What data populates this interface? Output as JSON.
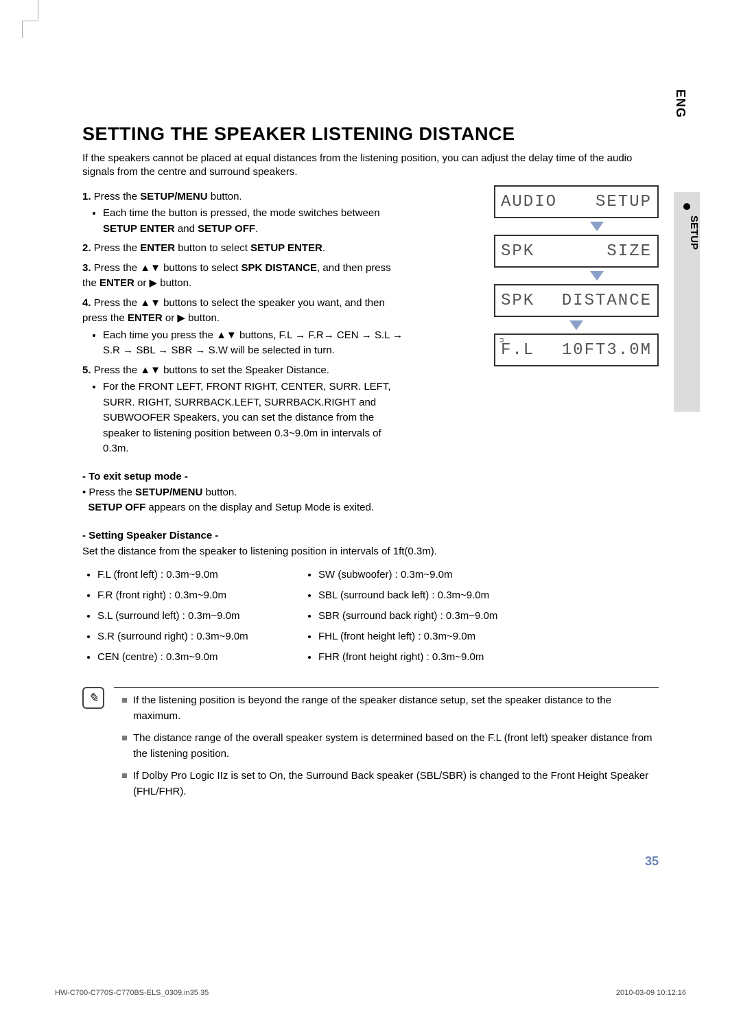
{
  "page": {
    "lang_tab": "ENG",
    "section_tab": "SETUP",
    "title": "SETTING THE SPEAKER LISTENING DISTANCE",
    "intro": "If the speakers cannot be placed at equal distances from the listening position, you can adjust the delay time of the audio signals from the centre and surround speakers.",
    "page_number": "35",
    "footer_left": "HW-C700-C770S-C770BS-ELS_0309.in35   35",
    "footer_right": "2010-03-09   10:12:16"
  },
  "steps": {
    "s1_a": "Press the ",
    "s1_b": "SETUP/MENU",
    "s1_c": " button.",
    "s1_sub": "Each time the button is pressed, the mode switches between ",
    "s1_sub_b1": "SETUP ENTER",
    "s1_sub_mid": " and ",
    "s1_sub_b2": "SETUP OFF",
    "s2_a": "Press the ",
    "s2_b": "ENTER",
    "s2_c": " button to select ",
    "s2_d": "SETUP ENTER",
    "s3_a": "Press the ▲▼ buttons to select ",
    "s3_b": "SPK DISTANCE",
    "s3_c": ", and then press the ",
    "s3_d": "ENTER",
    "s3_e": " or ▶ button.",
    "s4_a": "Press the ▲▼ buttons to select the speaker you want, and then press the ",
    "s4_b": "ENTER",
    "s4_c": " or ▶ button.",
    "s4_sub": "Each time you press the ▲▼ buttons, F.L → F.R→ CEN → S.L → S.R → SBL → SBR → S.W will be selected in turn.",
    "s5_a": "Press the ▲▼ buttons to set the Speaker Distance.",
    "s5_sub": "For the  FRONT LEFT, FRONT RIGHT, CENTER, SURR. LEFT, SURR. RIGHT, SURRBACK.LEFT, SURRBACK.RIGHT and SUBWOOFER Speakers, you can set the distance from the speaker to listening position between 0.3~9.0m in intervals of 0.3m."
  },
  "exit": {
    "heading": "- To exit setup mode -",
    "line1_a": "• Press the ",
    "line1_b": "SETUP/MENU",
    "line1_c": " button.",
    "line2_a": "SETUP OFF",
    "line2_b": " appears on the display and Setup Mode is exited."
  },
  "set": {
    "heading": "- Setting Speaker Distance -",
    "intro": "Set the distance from the speaker to listening position in intervals of 1ft(0.3m).",
    "left": [
      "F.L (front left) : 0.3m~9.0m",
      "F.R (front right) : 0.3m~9.0m",
      "S.L (surround left) : 0.3m~9.0m",
      "S.R (surround right) : 0.3m~9.0m",
      "CEN (centre) : 0.3m~9.0m"
    ],
    "right": [
      "SW (subwoofer) : 0.3m~9.0m",
      "SBL (surround back left) : 0.3m~9.0m",
      "SBR (surround back right) : 0.3m~9.0m",
      "FHL (front height left) : 0.3m~9.0m",
      "FHR (front height right) : 0.3m~9.0m"
    ]
  },
  "notes": [
    "If the listening position is beyond the range of the speaker distance setup, set the speaker distance to the maximum.",
    "The distance range of the overall speaker system is determined based on the F.L (front left) speaker distance from the listening position.",
    "If Dolby Pro Logic IIz is set to On, the Surround Back speaker (SBL/SBR) is changed to the Front Height Speaker (FHL/FHR)."
  ],
  "display": {
    "d1_l": "AUDIO",
    "d1_r": "SETUP",
    "d2_l": "SPK",
    "d2_r": "SIZE",
    "d3_l": "SPK",
    "d3_r": "DISTANCE",
    "d4_l": "F.L",
    "d4_r": "10FT3.0M",
    "micro_icon": "⊐"
  }
}
